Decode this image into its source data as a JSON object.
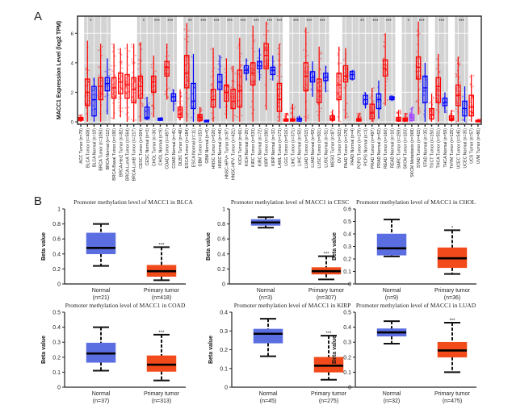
{
  "figure": {
    "panel_a_label": "A",
    "panel_b_label": "B"
  },
  "chart_data": [
    {
      "type": "box",
      "panel": "A",
      "title": "",
      "xlabel": "",
      "ylabel": "MACC1 Expression Level (log2 TPM)",
      "ylim": [
        0,
        7
      ],
      "yticks": [
        0,
        2,
        4,
        6
      ],
      "colors": {
        "tumor": "#ff0000",
        "normal": "#0000ff",
        "metastasis": "#a040ff",
        "sig_band": "#d3d3d3"
      },
      "groups": [
        {
          "label": "ACC Tumor (n=79)",
          "type": "tumor",
          "q1": 0.1,
          "median": 0.2,
          "q3": 0.3,
          "min": 0,
          "max": 0.5,
          "sig": ""
        },
        {
          "label": "BLCA Tumor (n=408)",
          "type": "tumor",
          "q1": 1.1,
          "median": 2.0,
          "q3": 2.9,
          "min": 0,
          "max": 5.5,
          "sig": "*",
          "band_start": true
        },
        {
          "label": "BLCA Normal (n=19)",
          "type": "normal",
          "q1": 0.4,
          "median": 1.5,
          "q3": 2.4,
          "min": 0,
          "max": 3.0,
          "sig": ""
        },
        {
          "label": "BRCA Tumor (n=1093)",
          "type": "tumor",
          "q1": 1.5,
          "median": 2.4,
          "q3": 3.0,
          "min": 0,
          "max": 5.3,
          "sig": "",
          "band_start": true
        },
        {
          "label": "BRCA Normal (n=112)",
          "type": "normal",
          "q1": 2.1,
          "median": 2.6,
          "q3": 3.0,
          "min": 0.5,
          "max": 4.3,
          "sig": ""
        },
        {
          "label": "BRCA-Basal Tumor (n=190)",
          "type": "tumor",
          "q1": 1.6,
          "median": 2.3,
          "q3": 3.0,
          "min": 0.2,
          "max": 5.3,
          "sig": ""
        },
        {
          "label": "BRCA-Her2 Tumor (n=82)",
          "type": "tumor",
          "q1": 1.9,
          "median": 2.7,
          "q3": 3.3,
          "min": 0.3,
          "max": 5.0,
          "sig": ""
        },
        {
          "label": "BRCA-LumA Tumor (n=564)",
          "type": "tumor",
          "q1": 1.6,
          "median": 2.5,
          "q3": 3.2,
          "min": 0,
          "max": 5.3,
          "sig": ""
        },
        {
          "label": "BRCA-LumB Tumor (n=217)",
          "type": "tumor",
          "q1": 1.3,
          "median": 2.2,
          "q3": 3.0,
          "min": 0,
          "max": 5.3,
          "sig": ""
        },
        {
          "label": "CESC Tumor (n=304)",
          "type": "tumor",
          "q1": 1.6,
          "median": 2.4,
          "q3": 3.1,
          "min": 0,
          "max": 5.4,
          "sig": "*",
          "band_start": true
        },
        {
          "label": "CESC Normal (n=3)",
          "type": "normal",
          "q1": 0.2,
          "median": 0.3,
          "q3": 1.0,
          "min": 0.1,
          "max": 1.7,
          "sig": ""
        },
        {
          "label": "CHOL Tumor (n=36)",
          "type": "tumor",
          "q1": 2.0,
          "median": 2.7,
          "q3": 3.1,
          "min": 0.3,
          "max": 4.5,
          "sig": "***",
          "band_start": true
        },
        {
          "label": "CHOL Normal (n=9)",
          "type": "normal",
          "q1": 0.1,
          "median": 0.2,
          "q3": 0.25,
          "min": 0.05,
          "max": 0.3,
          "sig": ""
        },
        {
          "label": "COAD Tumor (n=457)",
          "type": "tumor",
          "q1": 3.1,
          "median": 3.7,
          "q3": 4.1,
          "min": 1.5,
          "max": 5.3,
          "sig": "***",
          "band_start": true
        },
        {
          "label": "COAD Normal (n=41)",
          "type": "normal",
          "q1": 1.4,
          "median": 1.7,
          "q3": 1.9,
          "min": 0.7,
          "max": 2.2,
          "sig": ""
        },
        {
          "label": "DLBC Tumor (n=48)",
          "type": "tumor",
          "q1": 0.3,
          "median": 0.5,
          "q3": 1.0,
          "min": 0.1,
          "max": 2.2,
          "sig": ""
        },
        {
          "label": "ESCA Tumor (n=184)",
          "type": "tumor",
          "q1": 2.3,
          "median": 3.3,
          "q3": 4.5,
          "min": 0,
          "max": 6.7,
          "sig": "**",
          "band_start": true
        },
        {
          "label": "ESCA Normal (n=11)",
          "type": "normal",
          "q1": 0.9,
          "median": 1.4,
          "q3": 2.6,
          "min": 0,
          "max": 4.6,
          "sig": ""
        },
        {
          "label": "GBM Tumor (n=153)",
          "type": "tumor",
          "q1": 0.1,
          "median": 0.3,
          "q3": 0.5,
          "min": 0,
          "max": 1.0,
          "sig": "***",
          "band_start": true
        },
        {
          "label": "GBM Normal (n=5)",
          "type": "normal",
          "q1": 0.0,
          "median": 0.05,
          "q3": 0.1,
          "min": 0,
          "max": 0.15,
          "sig": ""
        },
        {
          "label": "HNSC Tumor (n=520)",
          "type": "tumor",
          "q1": 1.0,
          "median": 1.5,
          "q3": 2.2,
          "min": 0,
          "max": 5.0,
          "sig": "***",
          "band_start": true
        },
        {
          "label": "HNSC Normal (n=44)",
          "type": "normal",
          "q1": 2.2,
          "median": 2.7,
          "q3": 3.2,
          "min": 0.9,
          "max": 4.5,
          "sig": ""
        },
        {
          "label": "HNSC-HPV+ Tumor (n=97)",
          "type": "tumor",
          "q1": 1.4,
          "median": 2.0,
          "q3": 2.5,
          "min": 0.2,
          "max": 4.3,
          "sig": "***",
          "band_start": true
        },
        {
          "label": "HNSC-HPV- Tumor (n=421)",
          "type": "tumor",
          "q1": 0.9,
          "median": 1.4,
          "q3": 2.2,
          "min": 0,
          "max": 3.8,
          "sig": ""
        },
        {
          "label": "KICH Tumor (n=66)",
          "type": "tumor",
          "q1": 1.0,
          "median": 2.1,
          "q3": 3.5,
          "min": 0,
          "max": 5.7,
          "sig": "***",
          "band_start": true
        },
        {
          "label": "KICH Normal (n=25)",
          "type": "normal",
          "q1": 3.3,
          "median": 3.5,
          "q3": 3.8,
          "min": 2.8,
          "max": 4.3,
          "sig": ""
        },
        {
          "label": "KIRC Tumor (n=533)",
          "type": "tumor",
          "q1": 2.5,
          "median": 3.3,
          "q3": 4.0,
          "min": 0,
          "max": 6.5,
          "sig": "***",
          "band_start": true
        },
        {
          "label": "KIRC Normal (n=72)",
          "type": "normal",
          "q1": 3.6,
          "median": 3.8,
          "q3": 4.1,
          "min": 2.8,
          "max": 5.0,
          "sig": ""
        },
        {
          "label": "KIRP Tumor (n=290)",
          "type": "tumor",
          "q1": 3.6,
          "median": 4.5,
          "q3": 5.3,
          "min": 0.8,
          "max": 6.8,
          "sig": "***",
          "band_start": true
        },
        {
          "label": "KIRP Normal (n=32)",
          "type": "normal",
          "q1": 3.2,
          "median": 3.5,
          "q3": 3.7,
          "min": 2.8,
          "max": 4.5,
          "sig": ""
        },
        {
          "label": "LAML Tumor (n=173)",
          "type": "tumor",
          "q1": 0.7,
          "median": 1.5,
          "q3": 2.6,
          "min": 0,
          "max": 5.3,
          "sig": "***",
          "band_start": true
        },
        {
          "label": "LGG Tumor (n=516)",
          "type": "tumor",
          "q1": 0.05,
          "median": 0.1,
          "q3": 0.2,
          "min": 0,
          "max": 0.6,
          "sig": ""
        },
        {
          "label": "LIHC Tumor (n=371)",
          "type": "tumor",
          "q1": 0.05,
          "median": 0.1,
          "q3": 0.2,
          "min": 0,
          "max": 1.2,
          "sig": "***",
          "band_start": true
        },
        {
          "label": "LIHC Normal (n=50)",
          "type": "normal",
          "q1": 0.05,
          "median": 0.15,
          "q3": 0.25,
          "min": 0,
          "max": 0.4,
          "sig": ""
        },
        {
          "label": "LUAD Tumor (n=515)",
          "type": "tumor",
          "q1": 2.1,
          "median": 3.1,
          "q3": 4.0,
          "min": 0,
          "max": 6.4,
          "sig": "***",
          "band_start": true
        },
        {
          "label": "LUAD Normal (n=59)",
          "type": "normal",
          "q1": 2.7,
          "median": 3.0,
          "q3": 3.4,
          "min": 1.7,
          "max": 4.1,
          "sig": ""
        },
        {
          "label": "LUSC Tumor (n=501)",
          "type": "tumor",
          "q1": 1.3,
          "median": 2.1,
          "q3": 2.9,
          "min": 0,
          "max": 5.1,
          "sig": "***",
          "band_start": true
        },
        {
          "label": "LUSC Normal (n=51)",
          "type": "normal",
          "q1": 2.8,
          "median": 3.0,
          "q3": 3.3,
          "min": 2.0,
          "max": 3.8,
          "sig": ""
        },
        {
          "label": "MESO Tumor (n=87)",
          "type": "tumor",
          "q1": 0.1,
          "median": 0.2,
          "q3": 0.4,
          "min": 0,
          "max": 0.8,
          "sig": ""
        },
        {
          "label": "OV Tumor (n=303)",
          "type": "tumor",
          "q1": 1.5,
          "median": 2.5,
          "q3": 3.3,
          "min": 0,
          "max": 5.1,
          "sig": ""
        },
        {
          "label": "PAAD Tumor (n=178)",
          "type": "tumor",
          "q1": 2.7,
          "median": 3.1,
          "q3": 3.8,
          "min": 0.2,
          "max": 5.0,
          "sig": "",
          "band_start": true
        },
        {
          "label": "PAAD Normal (n=4)",
          "type": "normal",
          "q1": 2.9,
          "median": 3.2,
          "q3": 3.4,
          "min": 2.8,
          "max": 3.5,
          "sig": ""
        },
        {
          "label": "PCPG Tumor (n=179)",
          "type": "tumor",
          "q1": 0.05,
          "median": 0.1,
          "q3": 0.2,
          "min": 0,
          "max": 0.6,
          "sig": "**",
          "band_start": true
        },
        {
          "label": "PCPG Normal (n=3)",
          "type": "normal",
          "q1": 1.2,
          "median": 1.5,
          "q3": 1.8,
          "min": 0.9,
          "max": 2.0,
          "sig": ""
        },
        {
          "label": "PRAD Tumor (n=497)",
          "type": "tumor",
          "q1": 0.2,
          "median": 0.6,
          "q3": 1.2,
          "min": 0,
          "max": 2.3,
          "sig": "***",
          "band_start": true
        },
        {
          "label": "PRAD Normal (n=52)",
          "type": "normal",
          "q1": 0.9,
          "median": 1.5,
          "q3": 1.9,
          "min": 0.2,
          "max": 2.8,
          "sig": ""
        },
        {
          "label": "READ Tumor (n=166)",
          "type": "tumor",
          "q1": 3.1,
          "median": 3.6,
          "q3": 4.2,
          "min": 1.1,
          "max": 6.0,
          "sig": "***",
          "band_start": true
        },
        {
          "label": "READ Normal (n=10)",
          "type": "normal",
          "q1": 1.5,
          "median": 1.6,
          "q3": 1.7,
          "min": 1.4,
          "max": 1.8,
          "sig": ""
        },
        {
          "label": "SARC Tumor (n=259)",
          "type": "tumor",
          "q1": 0.05,
          "median": 0.1,
          "q3": 0.3,
          "min": 0,
          "max": 0.8,
          "sig": ""
        },
        {
          "label": "SKCM Tumor (n=103)",
          "type": "tumor",
          "q1": 0.05,
          "median": 0.1,
          "q3": 0.25,
          "min": 0,
          "max": 0.6,
          "sig": "*",
          "band_start": true
        },
        {
          "label": "SKCM Metastasis (n=368)",
          "type": "metastasis",
          "q1": 0.1,
          "median": 0.3,
          "q3": 0.5,
          "min": 0,
          "max": 1.0,
          "sig": ""
        },
        {
          "label": "STAD Tumor (n=415)",
          "type": "tumor",
          "q1": 2.9,
          "median": 3.7,
          "q3": 4.4,
          "min": 0.5,
          "max": 6.8,
          "sig": "***",
          "band_start": true
        },
        {
          "label": "STAD Normal (n=35)",
          "type": "normal",
          "q1": 1.3,
          "median": 2.3,
          "q3": 3.1,
          "min": 0,
          "max": 4.0,
          "sig": ""
        },
        {
          "label": "TGCT Tumor (n=150)",
          "type": "tumor",
          "q1": 0.2,
          "median": 0.5,
          "q3": 0.9,
          "min": 0,
          "max": 1.9,
          "sig": ""
        },
        {
          "label": "THCA Tumor (n=501)",
          "type": "tumor",
          "q1": 1.3,
          "median": 2.4,
          "q3": 3.0,
          "min": 0,
          "max": 4.6,
          "sig": "***",
          "band_start": true
        },
        {
          "label": "THCA Normal (n=59)",
          "type": "normal",
          "q1": 1.1,
          "median": 1.3,
          "q3": 1.6,
          "min": 0.6,
          "max": 2.0,
          "sig": ""
        },
        {
          "label": "THYM Tumor (n=120)",
          "type": "tumor",
          "q1": 0.1,
          "median": 0.2,
          "q3": 0.4,
          "min": 0,
          "max": 0.8,
          "sig": ""
        },
        {
          "label": "UCEC Tumor (n=545)",
          "type": "tumor",
          "q1": 1.1,
          "median": 1.8,
          "q3": 2.5,
          "min": 0,
          "max": 4.4,
          "sig": "***",
          "band_start": true
        },
        {
          "label": "UCEC Normal (n=35)",
          "type": "normal",
          "q1": 0.4,
          "median": 0.9,
          "q3": 1.4,
          "min": 0,
          "max": 2.4,
          "sig": ""
        },
        {
          "label": "UCS Tumor (n=57)",
          "type": "tumor",
          "q1": 0.4,
          "median": 1.0,
          "q3": 1.8,
          "min": 0,
          "max": 3.2,
          "sig": ""
        },
        {
          "label": "UVM Tumor (n=80)",
          "type": "tumor",
          "q1": 0.0,
          "median": 0.05,
          "q3": 0.1,
          "min": 0,
          "max": 0.2,
          "sig": ""
        }
      ]
    },
    {
      "type": "box",
      "panel": "B",
      "title": "Promoter methylation level of MACC1 in BLCA",
      "ylabel": "Beta value",
      "ylim": [
        0,
        1
      ],
      "yticks": [
        "0",
        "0.2",
        "0.4",
        "0.6",
        "0.8",
        "1"
      ],
      "categories": [
        "Normal",
        "Primary tumor"
      ],
      "counts": [
        "(n=21)",
        "(n=418)"
      ],
      "boxes": [
        {
          "min": 0.24,
          "q1": 0.4,
          "median": 0.48,
          "q3": 0.68,
          "max": 0.8,
          "color": "#5b6ee1"
        },
        {
          "min": 0.05,
          "q1": 0.1,
          "median": 0.17,
          "q3": 0.25,
          "max": 0.49,
          "color": "#f24a1a",
          "sig": "***"
        }
      ]
    },
    {
      "type": "box",
      "panel": "B",
      "title": "Promoter methylation level of MACC1 in CESC",
      "ylabel": "Beta value",
      "ylim": [
        0,
        1
      ],
      "yticks": [
        "0",
        "0.2",
        "0.4",
        "0.6",
        "0.8",
        "1"
      ],
      "categories": [
        "Normal",
        "Primary tumor"
      ],
      "counts": [
        "(n=3)",
        "(n=307)"
      ],
      "boxes": [
        {
          "min": 0.75,
          "q1": 0.78,
          "median": 0.82,
          "q3": 0.86,
          "max": 0.89,
          "color": "#5b6ee1"
        },
        {
          "min": 0.06,
          "q1": 0.13,
          "median": 0.17,
          "q3": 0.22,
          "max": 0.37,
          "color": "#f24a1a",
          "sig": "***"
        }
      ]
    },
    {
      "type": "box",
      "panel": "B",
      "title": "Promoter methylation level of MACC1 in CHOL",
      "ylabel": "Beta value",
      "ylim": [
        0,
        0.6
      ],
      "yticks": [
        "0",
        "0.1",
        "0.2",
        "0.3",
        "0.4",
        "0.5",
        "0.6"
      ],
      "categories": [
        "Normal",
        "Primary tumor"
      ],
      "counts": [
        "(n=9)",
        "(n=36)"
      ],
      "boxes": [
        {
          "min": 0.22,
          "q1": 0.23,
          "median": 0.285,
          "q3": 0.4,
          "max": 0.515,
          "color": "#5b6ee1"
        },
        {
          "min": 0.08,
          "q1": 0.13,
          "median": 0.205,
          "q3": 0.29,
          "max": 0.43,
          "color": "#f24a1a",
          "sig": "*"
        }
      ]
    },
    {
      "type": "box",
      "panel": "B",
      "title": "Promoter methylation level of MACC1 in COAD",
      "ylabel": "Beta value",
      "ylim": [
        0,
        0.5
      ],
      "yticks": [
        "0",
        "0.1",
        "0.2",
        "0.3",
        "0.4",
        "0.5"
      ],
      "categories": [
        "Normal",
        "Primary tumor"
      ],
      "counts": [
        "(n=37)",
        "(n=313)"
      ],
      "boxes": [
        {
          "min": 0.11,
          "q1": 0.165,
          "median": 0.225,
          "q3": 0.295,
          "max": 0.4,
          "color": "#5b6ee1"
        },
        {
          "min": 0.045,
          "q1": 0.105,
          "median": 0.15,
          "q3": 0.21,
          "max": 0.35,
          "color": "#f24a1a",
          "sig": "***"
        }
      ]
    },
    {
      "type": "box",
      "panel": "B",
      "title": "Promoter methylation level of MACC1 in KIRP",
      "ylabel": "Beta value",
      "ylim": [
        0,
        0.4
      ],
      "yticks": [
        "0",
        "0.1",
        "0.2",
        "0.3",
        "0.4"
      ],
      "categories": [
        "Normal",
        "Primary tumor"
      ],
      "counts": [
        "(n=45)",
        "(n=275)"
      ],
      "boxes": [
        {
          "min": 0.165,
          "q1": 0.235,
          "median": 0.285,
          "q3": 0.31,
          "max": 0.365,
          "color": "#5b6ee1"
        },
        {
          "min": 0.04,
          "q1": 0.08,
          "median": 0.115,
          "q3": 0.16,
          "max": 0.275,
          "color": "#f24a1a",
          "sig": "***"
        }
      ]
    },
    {
      "type": "box",
      "panel": "B",
      "title": "Promoter methylation level of MACC1 in LUAD",
      "ylabel": "Beta value",
      "ylim": [
        0,
        0.5
      ],
      "yticks": [
        "0",
        "0.1",
        "0.2",
        "0.3",
        "0.4",
        "0.5"
      ],
      "categories": [
        "Normal",
        "Primary tumor"
      ],
      "counts": [
        "(n=32)",
        "(n=475)"
      ],
      "boxes": [
        {
          "min": 0.29,
          "q1": 0.34,
          "median": 0.365,
          "q3": 0.39,
          "max": 0.44,
          "color": "#5b6ee1"
        },
        {
          "min": 0.1,
          "q1": 0.2,
          "median": 0.245,
          "q3": 0.3,
          "max": 0.43,
          "color": "#f24a1a",
          "sig": "***"
        }
      ]
    }
  ]
}
